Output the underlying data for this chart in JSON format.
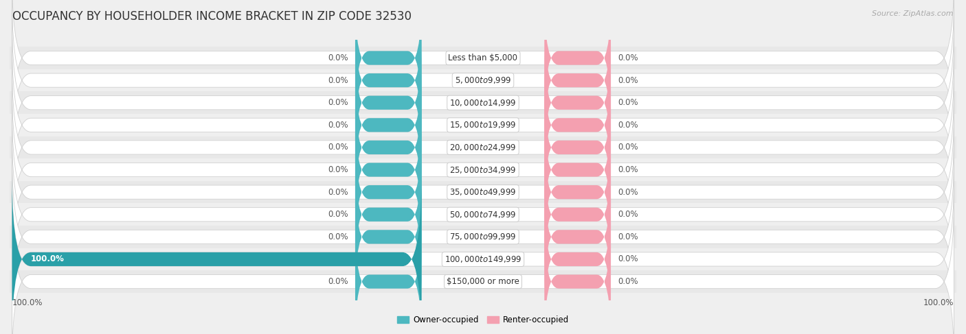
{
  "title": "OCCUPANCY BY HOUSEHOLDER INCOME BRACKET IN ZIP CODE 32530",
  "source": "Source: ZipAtlas.com",
  "categories": [
    "Less than $5,000",
    "$5,000 to $9,999",
    "$10,000 to $14,999",
    "$15,000 to $19,999",
    "$20,000 to $24,999",
    "$25,000 to $34,999",
    "$35,000 to $49,999",
    "$50,000 to $74,999",
    "$75,000 to $99,999",
    "$100,000 to $149,999",
    "$150,000 or more"
  ],
  "owner_values": [
    0.0,
    0.0,
    0.0,
    0.0,
    0.0,
    0.0,
    0.0,
    0.0,
    0.0,
    100.0,
    0.0
  ],
  "renter_values": [
    0.0,
    0.0,
    0.0,
    0.0,
    0.0,
    0.0,
    0.0,
    0.0,
    0.0,
    0.0,
    0.0
  ],
  "owner_color": "#4db8c0",
  "owner_color_dark": "#2aa0a8",
  "renter_color": "#f4a0b0",
  "background_color": "#efefef",
  "bar_bg_color": "#f7f7f7",
  "bar_row_color": "#e8e8e8",
  "title_fontsize": 12,
  "label_fontsize": 8.5,
  "tick_fontsize": 8.5,
  "source_fontsize": 8,
  "owner_label": "Owner-occupied",
  "renter_label": "Renter-occupied"
}
